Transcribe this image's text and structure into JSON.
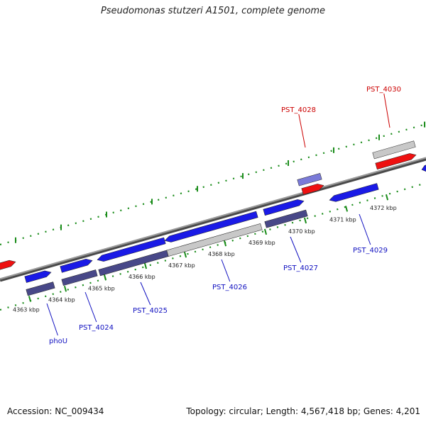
{
  "title": "Pseudomonas stutzeri A1501, complete genome",
  "footer": {
    "accession": "Accession: NC_009434",
    "summary": "Topology: circular; Length: 4,567,418 bp; Genes: 4,201"
  },
  "colors": {
    "forward_cds": "#1a1ae6",
    "reverse_cds": "#484888",
    "gene_label": "#1010c0",
    "rna": "#ee1111",
    "rna_label": "#cc0000",
    "pseudo": "#c8c8c8",
    "light_cds": "#7a7ad8",
    "backbone": "#808080",
    "tick_marks": "#1a8c1a"
  },
  "scale_ticks": [
    {
      "label": "4363 kbp"
    },
    {
      "label": "4364 kbp"
    },
    {
      "label": "4365 kbp"
    },
    {
      "label": "4366 kbp"
    },
    {
      "label": "4367 kbp"
    },
    {
      "label": "4368 kbp"
    },
    {
      "label": "4369 kbp"
    },
    {
      "label": "4370 kbp"
    },
    {
      "label": "4371 kbp"
    },
    {
      "label": "4372 kbp"
    }
  ],
  "gene_labels": [
    {
      "name": "phoU",
      "type": "cds"
    },
    {
      "name": "PST_4024",
      "type": "cds"
    },
    {
      "name": "PST_4025",
      "type": "cds"
    },
    {
      "name": "PST_4026",
      "type": "cds"
    },
    {
      "name": "PST_4027",
      "type": "cds"
    },
    {
      "name": "PST_4028",
      "type": "rna"
    },
    {
      "name": "PST_4029",
      "type": "cds"
    },
    {
      "name": "PST_4030",
      "type": "rna"
    }
  ]
}
